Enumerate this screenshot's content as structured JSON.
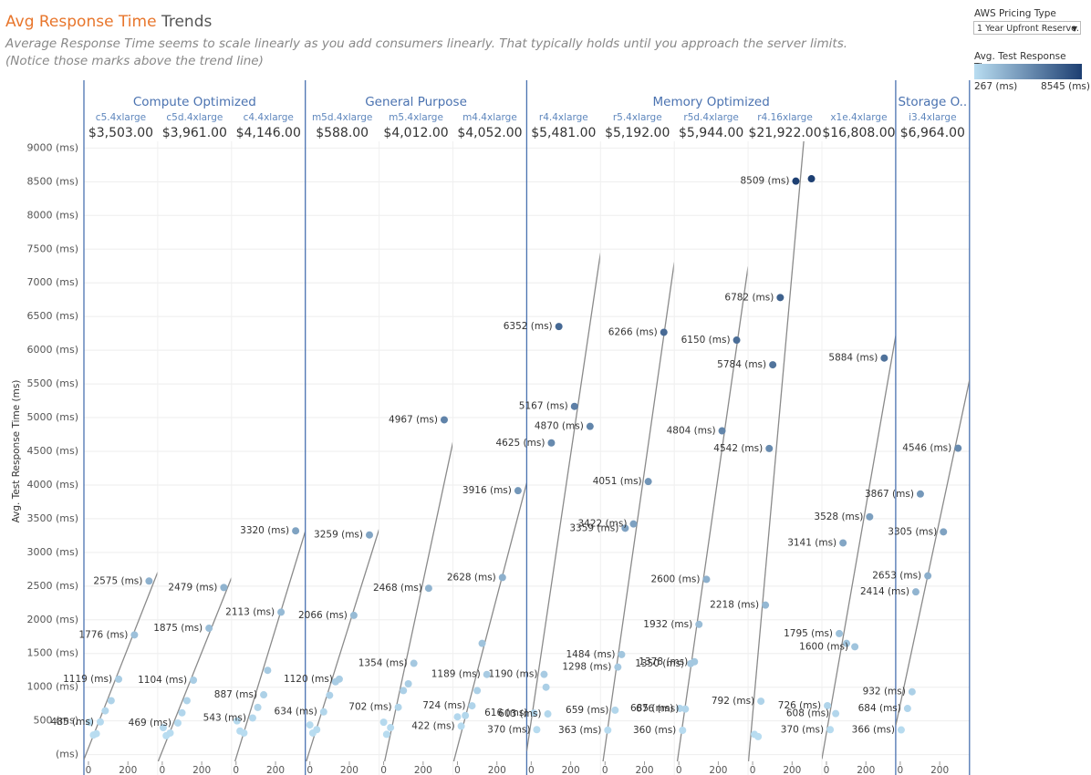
{
  "header": {
    "title_highlight": "Avg Response Time",
    "title_rest": "Trends",
    "subtitle": [
      "Average Response Time seems to scale linearly as you add consumers linearly. That typically holds until you approach the server limits.",
      "(Notice those marks above the trend line)"
    ]
  },
  "filter": {
    "label": "AWS Pricing Type",
    "value": "1 Year Upfront Reserve..."
  },
  "color_legend": {
    "title": "Avg. Test Response Time",
    "min": {
      "value": 267,
      "label": "267 (ms)"
    },
    "max": {
      "value": 8545,
      "label": "8545 (ms)"
    },
    "colors": [
      "#b9ddf1",
      "#1d3f72"
    ]
  },
  "chart_data": [
    {
      "type": "scatter",
      "group": "Compute Optimized",
      "instance": "c5.4xlarge",
      "price": "$3,503.00",
      "ylabel": "Avg. Test Response Time (ms)",
      "yticks": [
        {
          "value": 0,
          "label": "(ms)"
        },
        {
          "value": 500,
          "label": "500 (ms)"
        },
        {
          "value": 1000,
          "label": "1000 (ms)"
        },
        {
          "value": 1500,
          "label": "1500 (ms)"
        },
        {
          "value": 2000,
          "label": "2000 (ms)"
        },
        {
          "value": 2500,
          "label": "2500 (ms)"
        },
        {
          "value": 3000,
          "label": "3000 (ms)"
        },
        {
          "value": 3500,
          "label": "3500 (ms)"
        },
        {
          "value": 4000,
          "label": "4000 (ms)"
        },
        {
          "value": 4500,
          "label": "4500 (ms)"
        },
        {
          "value": 5000,
          "label": "5000 (ms)"
        },
        {
          "value": 5500,
          "label": "5500 (ms)"
        },
        {
          "value": 6000,
          "label": "6000 (ms)"
        },
        {
          "value": 6500,
          "label": "6500 (ms)"
        },
        {
          "value": 7000,
          "label": "7000 (ms)"
        },
        {
          "value": 7500,
          "label": "7500 (ms)"
        },
        {
          "value": 8000,
          "label": "8000 (ms)"
        },
        {
          "value": 8500,
          "label": "8500 (ms)"
        },
        {
          "value": 9000,
          "label": "9000 (ms)"
        }
      ],
      "ylim": [
        -100,
        9100
      ],
      "xlim": [
        -23,
        351
      ],
      "xticks": [
        0,
        200
      ],
      "x": [
        5,
        25,
        40,
        60,
        85,
        115,
        153,
        233,
        307
      ],
      "values": [
        480,
        290,
        310,
        485,
        650,
        800,
        1119,
        1776,
        2575
      ],
      "value_labels": [
        null,
        null,
        null,
        "485 (ms)",
        null,
        null,
        "1119 (ms)",
        "1776 (ms)",
        "2575 (ms)"
      ]
    },
    {
      "type": "scatter",
      "group": "Compute Optimized",
      "instance": "c5d.4xlarge",
      "price": "$3,961.00",
      "ylim": [
        -100,
        9100
      ],
      "xlim": [
        -23,
        351
      ],
      "xticks": [
        0,
        200
      ],
      "x": [
        5,
        20,
        40,
        79,
        100,
        125,
        158,
        237,
        312
      ],
      "values": [
        400,
        280,
        320,
        469,
        620,
        800,
        1104,
        1875,
        2479
      ],
      "value_labels": [
        null,
        null,
        null,
        "469 (ms)",
        null,
        null,
        "1104 (ms)",
        "1875 (ms)",
        "2479 (ms)"
      ]
    },
    {
      "type": "scatter",
      "group": "Compute Optimized",
      "instance": "c4.4xlarge",
      "price": "$4,146.00",
      "ylim": [
        -100,
        9100
      ],
      "xlim": [
        -23,
        351
      ],
      "xticks": [
        0,
        200
      ],
      "x": [
        5,
        20,
        40,
        84,
        110,
        140,
        160,
        228,
        302
      ],
      "values": [
        500,
        350,
        320,
        543,
        700,
        887,
        1250,
        2113,
        3320
      ],
      "value_labels": [
        null,
        null,
        null,
        "543 (ms)",
        null,
        "887 (ms)",
        null,
        "2113 (ms)",
        "3320 (ms)"
      ]
    },
    {
      "type": "scatter",
      "group": "General Purpose",
      "instance": "m5d.4xlarge",
      "price": "$588.00",
      "ylim": [
        -100,
        9100
      ],
      "xlim": [
        -23,
        351
      ],
      "xticks": [
        0,
        200
      ],
      "x": [
        0,
        15,
        35,
        70,
        100,
        130,
        149,
        223,
        302
      ],
      "values": [
        440,
        320,
        370,
        634,
        880,
        1080,
        1120,
        2066,
        3259
      ],
      "value_labels": [
        null,
        null,
        null,
        "634 (ms)",
        null,
        null,
        "1120 (ms)",
        "2066 (ms)",
        "3259 (ms)"
      ]
    },
    {
      "type": "scatter",
      "group": "General Purpose",
      "instance": "m5.4xlarge",
      "price": "$4,012.00",
      "ylim": [
        -100,
        9100
      ],
      "xlim": [
        -23,
        351
      ],
      "xticks": [
        0,
        200
      ],
      "x": [
        0,
        15,
        35,
        74,
        100,
        125,
        153,
        228,
        307
      ],
      "values": [
        480,
        300,
        400,
        702,
        950,
        1050,
        1354,
        2468,
        4967
      ],
      "value_labels": [
        null,
        null,
        null,
        "702 (ms)",
        null,
        null,
        "1354 (ms)",
        "2468 (ms)",
        "4967 (ms)"
      ]
    },
    {
      "type": "scatter",
      "group": "General Purpose",
      "instance": "m4.4xlarge",
      "price": "$4,052.00",
      "ylim": [
        -100,
        9100
      ],
      "xlim": [
        -23,
        351
      ],
      "xticks": [
        0,
        200
      ],
      "x": [
        0,
        19,
        40,
        74,
        100,
        125,
        149,
        228,
        307
      ],
      "values": [
        560,
        422,
        580,
        724,
        950,
        1650,
        1189,
        2628,
        3916
      ],
      "value_labels": [
        null,
        "422 (ms)",
        null,
        "724 (ms)",
        null,
        null,
        "1189 (ms)",
        "2628 (ms)",
        "3916 (ms)"
      ]
    },
    {
      "type": "scatter",
      "group": "Memory Optimized",
      "instance": "r4.4xlarge",
      "price": "$5,481.00",
      "ylim": [
        -100,
        9100
      ],
      "xlim": [
        -23,
        351
      ],
      "xticks": [
        0,
        200
      ],
      "x": [
        14,
        28,
        65,
        75,
        84,
        102,
        140,
        219,
        298
      ],
      "values": [
        616,
        370,
        1190,
        1000,
        603,
        4625,
        6352,
        5167,
        4870
      ],
      "value_labels": [
        "616 (ms)",
        "370 (ms)",
        "1190 (ms)",
        null,
        "603 (ms)",
        "4625 (ms)",
        "6352 (ms)",
        "5167 (ms)",
        "4870 (ms)"
      ]
    },
    {
      "type": "scatter",
      "group": "Memory Optimized",
      "instance": "r5.4xlarge",
      "price": "$5,192.00",
      "ylim": [
        -100,
        9100
      ],
      "xlim": [
        -23,
        351
      ],
      "xticks": [
        0,
        200
      ],
      "x": [
        14,
        51,
        65,
        84,
        102,
        144,
        219,
        298
      ],
      "values": [
        363,
        659,
        1298,
        1484,
        3359,
        3422,
        4051,
        6266
      ],
      "value_labels": [
        "363 (ms)",
        "659 (ms)",
        "1298 (ms)",
        "1484 (ms)",
        "3359 (ms)",
        "3422 (ms)",
        "4051 (ms)",
        "6266 (ms)"
      ]
    },
    {
      "type": "scatter",
      "group": "Memory Optimized",
      "instance": "r5d.4xlarge",
      "price": "$5,944.00",
      "ylim": [
        -100,
        9100
      ],
      "xlim": [
        -23,
        351
      ],
      "xticks": [
        0,
        200
      ],
      "x": [
        5,
        19,
        33,
        60,
        79,
        102,
        140,
        219,
        293
      ],
      "values": [
        685,
        360,
        676,
        1350,
        1378,
        1932,
        2600,
        4804,
        6150
      ],
      "value_labels": [
        "685 (ms)",
        "360 (ms)",
        "676 (ms)",
        "1350 (ms)",
        "1378 (ms)",
        "1932 (ms)",
        "2600 (ms)",
        "4804 (ms)",
        "6150 (ms)"
      ]
    },
    {
      "type": "scatter",
      "group": "Memory Optimized",
      "instance": "r4.16xlarge",
      "price": "$21,922.00",
      "ylim": [
        -100,
        9100
      ],
      "xlim": [
        -23,
        351
      ],
      "xticks": [
        0,
        200
      ],
      "x": [
        9,
        28,
        42,
        65,
        84,
        102,
        140,
        219,
        298
      ],
      "values": [
        300,
        267,
        792,
        2218,
        4542,
        5784,
        6782,
        8509,
        8545
      ],
      "value_labels": [
        null,
        null,
        "792 (ms)",
        "2218 (ms)",
        "4542 (ms)",
        "5784 (ms)",
        "6782 (ms)",
        "8509 (ms)",
        null
      ]
    },
    {
      "type": "scatter",
      "group": "Memory Optimized",
      "instance": "x1e.4xlarge",
      "price": "$16,808.00",
      "ylim": [
        -100,
        9100
      ],
      "xlim": [
        -23,
        351
      ],
      "xticks": [
        0,
        200
      ],
      "x": [
        5,
        19,
        47,
        65,
        102,
        144,
        84,
        219,
        293
      ],
      "values": [
        726,
        370,
        608,
        1795,
        1650,
        1600,
        3141,
        3528,
        5884
      ],
      "value_labels": [
        "726 (ms)",
        "370 (ms)",
        "608 (ms)",
        "1795 (ms)",
        null,
        "1600 (ms)",
        "3141 (ms)",
        "3528 (ms)",
        "5884 (ms)"
      ]
    },
    {
      "type": "scatter",
      "group": "Storage O..",
      "instance": "i3.4xlarge",
      "price": "$6,964.00",
      "ylim": [
        -100,
        9100
      ],
      "xlim": [
        -23,
        351
      ],
      "xticks": [
        0,
        200
      ],
      "x": [
        5,
        37,
        60,
        79,
        102,
        140,
        219,
        293
      ],
      "values": [
        366,
        684,
        932,
        2414,
        3867,
        2653,
        3305,
        4546
      ],
      "value_labels": [
        "366 (ms)",
        "684 (ms)",
        "932 (ms)",
        "2414 (ms)",
        "3867 (ms)",
        "2653 (ms)",
        "3305 (ms)",
        "4546 (ms)"
      ]
    }
  ]
}
